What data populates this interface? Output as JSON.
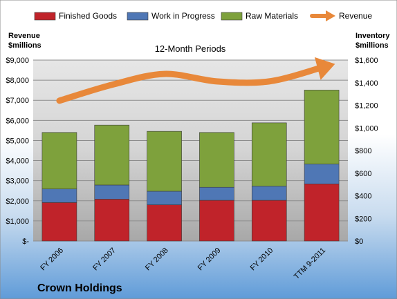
{
  "chart_data": {
    "type": "bar",
    "subtype": "stacked-bar-with-line",
    "title": "12-Month Periods",
    "company": "Crown Holdings",
    "categories": [
      "FY 2006",
      "FY 2007",
      "FY 2008",
      "FY 2009",
      "FY 2010",
      "TTM 9-2011"
    ],
    "series": [
      {
        "name": "Finished Goods",
        "axis": "right",
        "color": "#c0232a",
        "values": [
          340,
          370,
          320,
          360,
          360,
          505
        ]
      },
      {
        "name": "Work in Progress",
        "axis": "right",
        "color": "#4f77b5",
        "values": [
          120,
          125,
          120,
          115,
          125,
          175
        ]
      },
      {
        "name": "Raw Materials",
        "axis": "right",
        "color": "#7ea13c",
        "values": [
          500,
          530,
          530,
          485,
          560,
          655
        ]
      },
      {
        "name": "Revenue",
        "axis": "left",
        "type": "line",
        "color": "#e8883a",
        "values": [
          6980,
          7770,
          8310,
          7940,
          7940,
          8630
        ]
      }
    ],
    "ylabel_left": [
      "Revenue",
      "$millions"
    ],
    "ylabel_right": [
      "Inventory",
      "$millions"
    ],
    "ylim_left": [
      0,
      9000
    ],
    "ylim_right": [
      0,
      1600
    ],
    "yticks_left": [
      "$-",
      "$1,000",
      "$2,000",
      "$3,000",
      "$4,000",
      "$5,000",
      "$6,000",
      "$7,000",
      "$8,000",
      "$9,000"
    ],
    "yticks_right": [
      "$0",
      "$200",
      "$400",
      "$600",
      "$800",
      "$1,000",
      "$1,200",
      "$1,400",
      "$1,600"
    ],
    "legend_position": "top",
    "grid": true
  }
}
